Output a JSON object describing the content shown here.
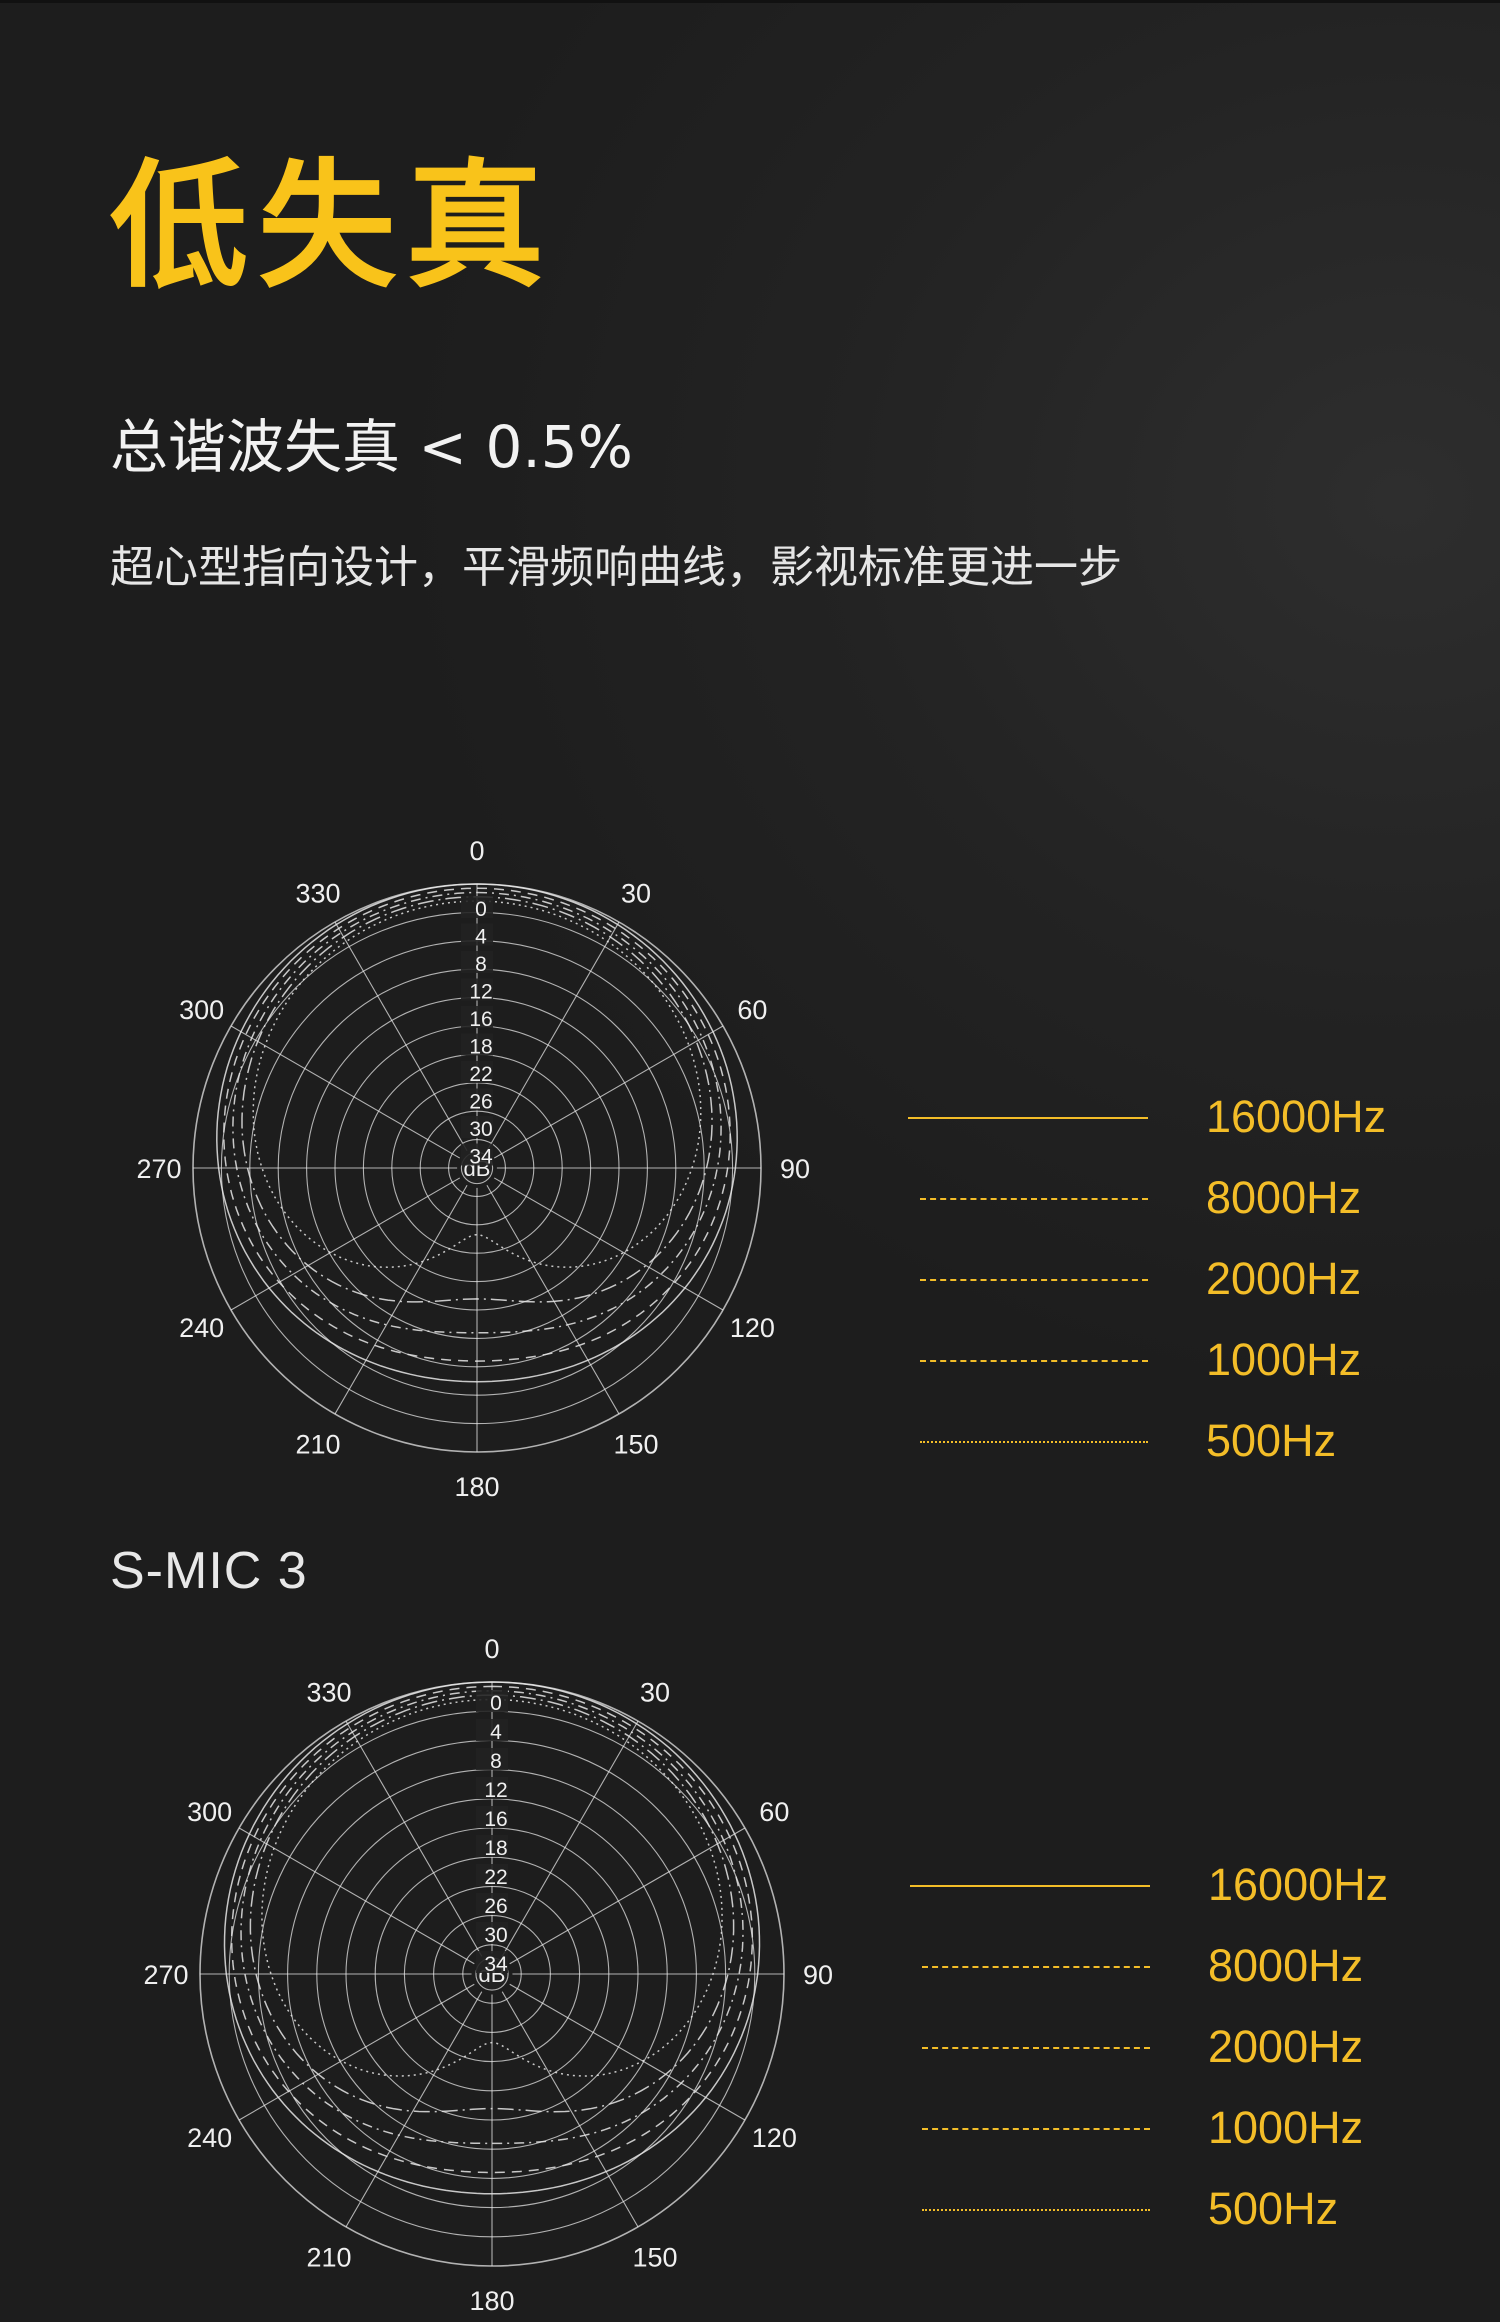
{
  "title": "低失真",
  "headline": "总谐波失真 < 0.5%",
  "description": "超心型指向设计，平滑频响曲线，影视标准更进一步",
  "accent_color": "#f9c31a",
  "legend_color": "#f3bd28",
  "chart_data": [
    {
      "type": "polar",
      "title": "",
      "angle_labels": [
        "0",
        "30",
        "60",
        "90",
        "120",
        "150",
        "180",
        "210",
        "240",
        "270",
        "300",
        "330"
      ],
      "radial_labels": [
        "0",
        "4",
        "8",
        "12",
        "16",
        "18",
        "22",
        "26",
        "30",
        "34"
      ],
      "center_label": "dB",
      "series": [
        {
          "name": "16000Hz",
          "line_style": "solid",
          "shape": "supercardioid"
        },
        {
          "name": "8000Hz",
          "line_style": "dashed",
          "shape": "supercardioid"
        },
        {
          "name": "2000Hz",
          "line_style": "dash-dot",
          "shape": "supercardioid"
        },
        {
          "name": "1000Hz",
          "line_style": "long-dash-dot",
          "shape": "supercardioid"
        },
        {
          "name": "500Hz",
          "line_style": "dotted",
          "shape": "supercardioid"
        }
      ]
    },
    {
      "type": "polar",
      "title": "S-MIC 3",
      "angle_labels": [
        "0",
        "30",
        "60",
        "90",
        "120",
        "150",
        "180",
        "210",
        "240",
        "270",
        "300",
        "330"
      ],
      "radial_labels": [
        "0",
        "4",
        "8",
        "12",
        "16",
        "18",
        "22",
        "26",
        "30",
        "34"
      ],
      "center_label": "dB",
      "series": [
        {
          "name": "16000Hz",
          "line_style": "solid",
          "shape": "supercardioid"
        },
        {
          "name": "8000Hz",
          "line_style": "dashed",
          "shape": "supercardioid"
        },
        {
          "name": "2000Hz",
          "line_style": "dash-dot",
          "shape": "supercardioid"
        },
        {
          "name": "1000Hz",
          "line_style": "long-dash-dot",
          "shape": "supercardioid"
        },
        {
          "name": "500Hz",
          "line_style": "dotted",
          "shape": "supercardioid"
        }
      ]
    }
  ]
}
